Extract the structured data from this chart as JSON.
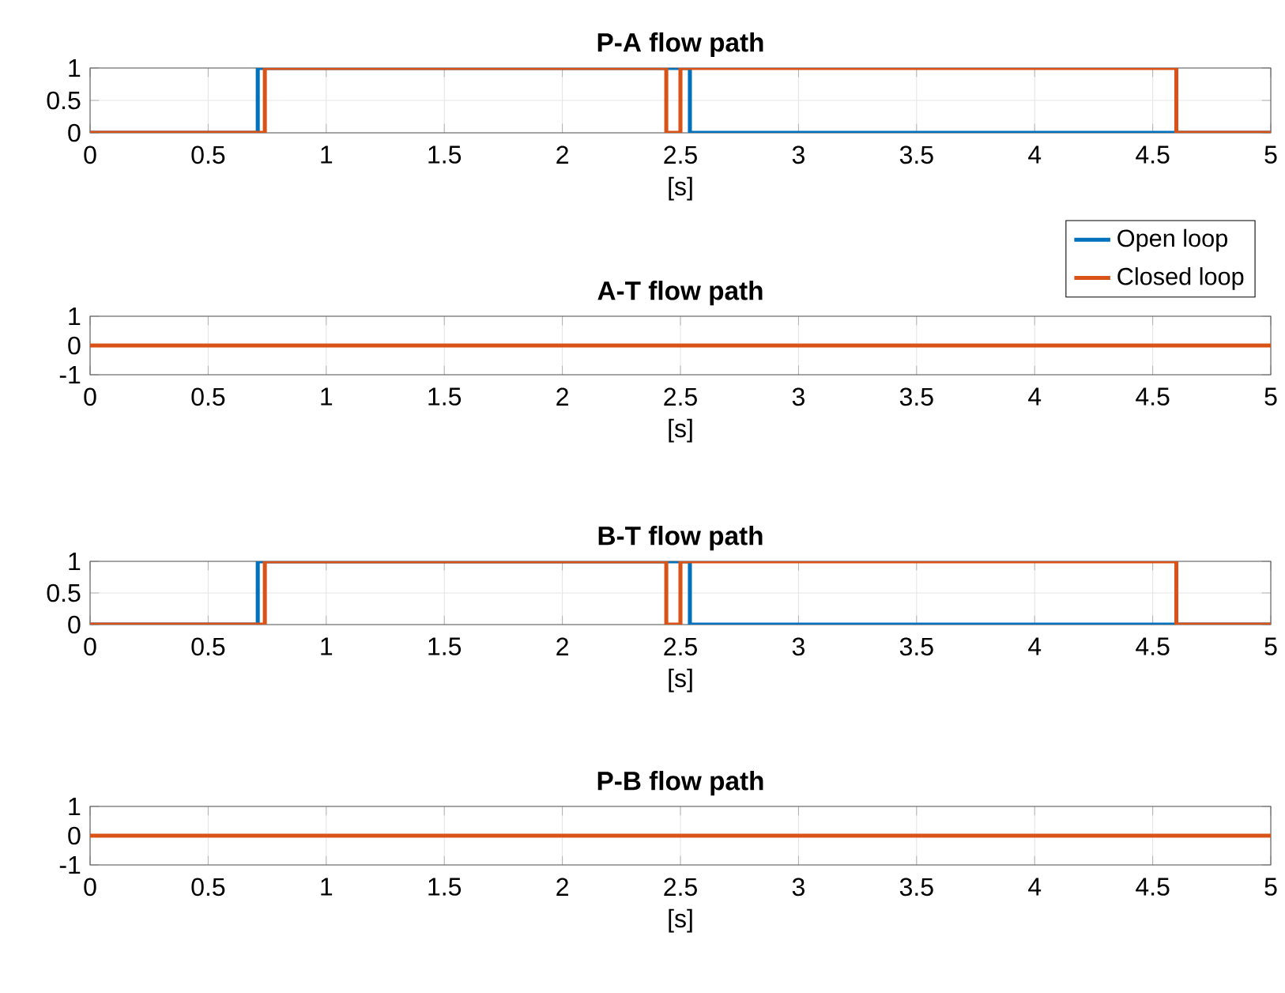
{
  "chart_data": [
    {
      "type": "step",
      "title": "P-A flow path",
      "xlabel": "[s]",
      "xlim": [
        0,
        5
      ],
      "xticks": [
        0,
        0.5,
        1,
        1.5,
        2,
        2.5,
        3,
        3.5,
        4,
        4.5,
        5
      ],
      "ylim": [
        0,
        1
      ],
      "yticks": [
        0,
        0.5,
        1
      ],
      "grid": true,
      "legend": "bottom right",
      "series": [
        {
          "name": "Open loop",
          "color": "#0072bd",
          "x": [
            0,
            0.71,
            2.54,
            5
          ],
          "values": [
            0,
            1,
            0,
            0
          ]
        },
        {
          "name": "Closed loop",
          "color": "#d95319",
          "x": [
            0,
            0.74,
            2.44,
            2.5,
            4.6,
            5
          ],
          "values": [
            0,
            1,
            0,
            1,
            0,
            0
          ]
        }
      ]
    },
    {
      "type": "step",
      "title": "A-T flow path",
      "xlabel": "[s]",
      "xlim": [
        0,
        5
      ],
      "xticks": [
        0,
        0.5,
        1,
        1.5,
        2,
        2.5,
        3,
        3.5,
        4,
        4.5,
        5
      ],
      "ylim": [
        -1,
        1
      ],
      "yticks": [
        -1,
        0,
        1
      ],
      "grid": true,
      "series": [
        {
          "color": "#d95319",
          "x": [
            0,
            5
          ],
          "values": [
            0,
            0
          ]
        }
      ]
    },
    {
      "type": "step",
      "title": "B-T flow path",
      "xlabel": "[s]",
      "xlim": [
        0,
        5
      ],
      "xticks": [
        0,
        0.5,
        1,
        1.5,
        2,
        2.5,
        3,
        3.5,
        4,
        4.5,
        5
      ],
      "ylim": [
        0,
        1
      ],
      "yticks": [
        0,
        0.5,
        1
      ],
      "grid": true,
      "series": [
        {
          "color": "#0072bd",
          "x": [
            0,
            0.71,
            2.54,
            5
          ],
          "values": [
            0,
            1,
            0,
            0
          ]
        },
        {
          "color": "#d95319",
          "x": [
            0,
            0.74,
            2.44,
            2.5,
            4.6,
            5
          ],
          "values": [
            0,
            1,
            0,
            1,
            0,
            0
          ]
        }
      ]
    },
    {
      "type": "step",
      "title": "P-B flow path",
      "xlabel": "[s]",
      "xlim": [
        0,
        5
      ],
      "xticks": [
        0,
        0.5,
        1,
        1.5,
        2,
        2.5,
        3,
        3.5,
        4,
        4.5,
        5
      ],
      "ylim": [
        -1,
        1
      ],
      "yticks": [
        -1,
        0,
        1
      ],
      "grid": true,
      "series": [
        {
          "color": "#d95319",
          "x": [
            0,
            5
          ],
          "values": [
            0,
            0
          ]
        }
      ]
    }
  ]
}
